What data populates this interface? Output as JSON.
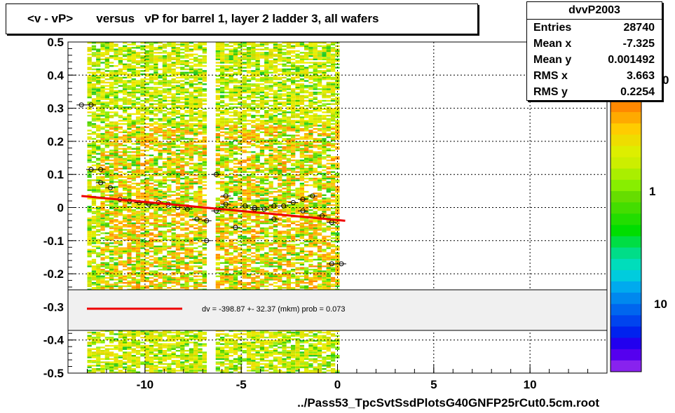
{
  "title": "<v - vP>       versus   vP for barrel 1, layer 2 ladder 3, all wafers",
  "x_title": "../Pass53_TpcSvtSsdPlotsG40GNFP25rCut0.5cm.root",
  "stats": {
    "name": "dvvP2003",
    "rows": [
      {
        "key": "Entries",
        "value": "28740"
      },
      {
        "key": "Mean x",
        "value": "-7.325"
      },
      {
        "key": "Mean y",
        "value": "0.001492"
      },
      {
        "key": "RMS x",
        "value": "3.663"
      },
      {
        "key": "RMS y",
        "value": "0.2254"
      }
    ]
  },
  "legend": {
    "text": "dv = -398.87 +- 32.37 (mkm) prob = 0.073",
    "line_color": "#ee0000"
  },
  "colorbar": {
    "labels": [
      "1",
      "10"
    ],
    "label_partial": [
      "0",
      "10"
    ]
  },
  "colors": {
    "fit": "#ee0000",
    "frame": "#000000"
  },
  "chart_data": {
    "type": "heatmap",
    "xlim": [
      -14,
      14
    ],
    "ylim": [
      -0.5,
      0.5
    ],
    "xticks": [
      -10,
      -5,
      0,
      5,
      10
    ],
    "yticks": [
      -0.5,
      -0.4,
      -0.3,
      -0.2,
      -0.1,
      0,
      0.1,
      0.2,
      0.3,
      0.4,
      0.5
    ],
    "grid": true,
    "fit_line": {
      "x": [
        -13.3,
        0.4
      ],
      "y": [
        0.035,
        -0.04
      ]
    },
    "profile_points": {
      "x": [
        -13.3,
        -12.8,
        -12.8,
        -12.3,
        -12.3,
        -11.8,
        -11.3,
        -10.8,
        -10.3,
        -9.8,
        -9.3,
        -8.8,
        -8.3,
        -7.8,
        -7.3,
        -6.8,
        -6.3,
        -5.8,
        -5.3,
        -4.8,
        -4.3,
        -3.8,
        -3.3,
        -2.8,
        -2.3,
        -1.8,
        -1.3,
        -0.8,
        -0.3,
        0.2,
        -6.8,
        -6.3,
        -5.8,
        -4.3,
        -3.3,
        -1.8,
        -0.3
      ],
      "y": [
        0.31,
        0.31,
        0.115,
        0.115,
        0.075,
        0.06,
        0.025,
        0.02,
        0.015,
        0.01,
        0.015,
        0.01,
        0.0,
        -0.005,
        -0.035,
        -0.04,
        -0.01,
        0.01,
        -0.06,
        0.005,
        0.0,
        -0.005,
        0.005,
        0.005,
        0.015,
        0.025,
        0.035,
        -0.025,
        -0.045,
        -0.17,
        -0.1,
        0.1,
        0.035,
        -0.005,
        -0.035,
        -0.01,
        -0.17
      ]
    },
    "colorbar_scale": "log"
  }
}
